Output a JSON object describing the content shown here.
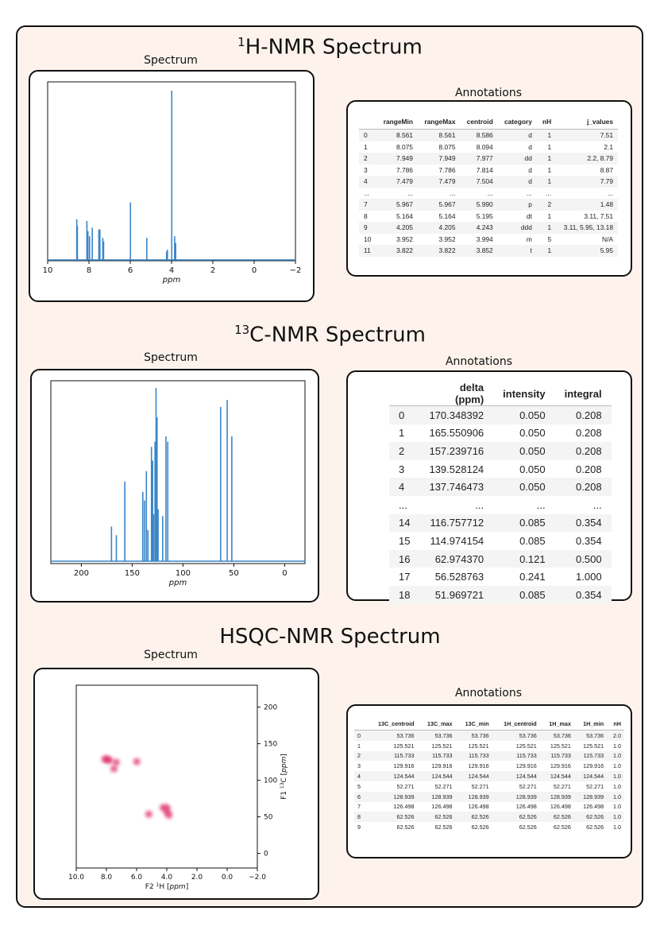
{
  "h1": {
    "title_sup": "1",
    "title_text": "H-NMR Spectrum",
    "spectrum_label": "Spectrum",
    "annotations_label": "Annotations",
    "chart_data": {
      "type": "line",
      "title": "",
      "xlabel": "ppm",
      "ylabel": "",
      "xlim": [
        10,
        -2
      ],
      "ylim": [
        0,
        1.0
      ],
      "x_ticks": [
        10,
        8,
        6,
        4,
        2,
        0,
        -2
      ],
      "x_tick_labels": [
        "10",
        "8",
        "6",
        "4",
        "2",
        "0",
        "−2"
      ],
      "peaks": [
        {
          "x": 8.59,
          "y": 0.24
        },
        {
          "x": 8.56,
          "y": 0.2
        },
        {
          "x": 8.1,
          "y": 0.23
        },
        {
          "x": 8.05,
          "y": 0.17
        },
        {
          "x": 7.97,
          "y": 0.14
        },
        {
          "x": 7.84,
          "y": 0.19
        },
        {
          "x": 7.52,
          "y": 0.18
        },
        {
          "x": 7.47,
          "y": 0.18
        },
        {
          "x": 7.33,
          "y": 0.13
        },
        {
          "x": 7.29,
          "y": 0.11
        },
        {
          "x": 5.99,
          "y": 0.34
        },
        {
          "x": 5.2,
          "y": 0.13
        },
        {
          "x": 4.24,
          "y": 0.05
        },
        {
          "x": 4.2,
          "y": 0.06
        },
        {
          "x": 3.99,
          "y": 1.0
        },
        {
          "x": 3.85,
          "y": 0.14
        },
        {
          "x": 3.8,
          "y": 0.1
        }
      ]
    },
    "table": {
      "columns": [
        "",
        "rangeMin",
        "rangeMax",
        "centroid",
        "category",
        "nH",
        "j_values"
      ],
      "rows": [
        [
          "0",
          "8.561",
          "8.561",
          "8.586",
          "d",
          "1",
          "7.51"
        ],
        [
          "1",
          "8.075",
          "8.075",
          "8.094",
          "d",
          "1",
          "2.1"
        ],
        [
          "2",
          "7.949",
          "7.949",
          "7.977",
          "dd",
          "1",
          "2.2, 8.79"
        ],
        [
          "3",
          "7.786",
          "7.786",
          "7.814",
          "d",
          "1",
          "8.87"
        ],
        [
          "4",
          "7.479",
          "7.479",
          "7.504",
          "d",
          "1",
          "7.79"
        ],
        [
          "...",
          "...",
          "...",
          "...",
          "...",
          "...",
          "..."
        ],
        [
          "7",
          "5.967",
          "5.967",
          "5.990",
          "p",
          "2",
          "1.48"
        ],
        [
          "8",
          "5.164",
          "5.164",
          "5.195",
          "dt",
          "1",
          "3.11, 7.51"
        ],
        [
          "9",
          "4.205",
          "4.205",
          "4.243",
          "ddd",
          "1",
          "3.11, 5.95, 13.18"
        ],
        [
          "10",
          "3.952",
          "3.952",
          "3.994",
          "m",
          "5",
          "N/A"
        ],
        [
          "11",
          "3.822",
          "3.822",
          "3.852",
          "t",
          "1",
          "5.95"
        ]
      ]
    }
  },
  "c13": {
    "title_sup": "13",
    "title_text": "C-NMR Spectrum",
    "spectrum_label": "Spectrum",
    "annotations_label": "Annotations",
    "chart_data": {
      "type": "line",
      "title": "",
      "xlabel": "ppm",
      "ylabel": "",
      "xlim": [
        230,
        -20
      ],
      "ylim": [
        0,
        1.0
      ],
      "x_ticks": [
        200,
        150,
        100,
        50,
        0
      ],
      "x_tick_labels": [
        "200",
        "150",
        "100",
        "50",
        "0"
      ],
      "peaks": [
        {
          "x": 170.35,
          "y": 0.2
        },
        {
          "x": 165.55,
          "y": 0.15
        },
        {
          "x": 157.24,
          "y": 0.46
        },
        {
          "x": 139.53,
          "y": 0.4
        },
        {
          "x": 137.75,
          "y": 0.35
        },
        {
          "x": 136.0,
          "y": 0.52
        },
        {
          "x": 134.5,
          "y": 0.18
        },
        {
          "x": 131.0,
          "y": 0.66
        },
        {
          "x": 129.9,
          "y": 0.58
        },
        {
          "x": 128.9,
          "y": 0.27
        },
        {
          "x": 127.5,
          "y": 0.69
        },
        {
          "x": 126.5,
          "y": 1.0
        },
        {
          "x": 125.5,
          "y": 0.83
        },
        {
          "x": 124.5,
          "y": 0.3
        },
        {
          "x": 120.0,
          "y": 0.26
        },
        {
          "x": 116.76,
          "y": 0.72
        },
        {
          "x": 114.97,
          "y": 0.69
        },
        {
          "x": 62.97,
          "y": 0.89
        },
        {
          "x": 56.53,
          "y": 0.93
        },
        {
          "x": 51.97,
          "y": 0.72
        }
      ]
    },
    "table": {
      "columns": [
        "",
        "delta (ppm)",
        "intensity",
        "integral"
      ],
      "rows": [
        [
          "0",
          "170.348392",
          "0.050",
          "0.208"
        ],
        [
          "1",
          "165.550906",
          "0.050",
          "0.208"
        ],
        [
          "2",
          "157.239716",
          "0.050",
          "0.208"
        ],
        [
          "3",
          "139.528124",
          "0.050",
          "0.208"
        ],
        [
          "4",
          "137.746473",
          "0.050",
          "0.208"
        ],
        [
          "...",
          "...",
          "...",
          "..."
        ],
        [
          "14",
          "116.757712",
          "0.085",
          "0.354"
        ],
        [
          "15",
          "114.974154",
          "0.085",
          "0.354"
        ],
        [
          "16",
          "62.974370",
          "0.121",
          "0.500"
        ],
        [
          "17",
          "56.528763",
          "0.241",
          "1.000"
        ],
        [
          "18",
          "51.969721",
          "0.085",
          "0.354"
        ]
      ]
    }
  },
  "hsqc": {
    "title_text": "HSQC-NMR Spectrum",
    "spectrum_label": "Spectrum",
    "annotations_label": "Annotations",
    "chart_data": {
      "type": "scatter",
      "title": "",
      "xlabel_pre": "F2 ",
      "xlabel_sup": "1",
      "xlabel_mid": "H [",
      "xlabel_unit": "ppm",
      "xlabel_post": "]",
      "ylabel_pre": "F1 ",
      "ylabel_sup": "13",
      "ylabel_mid": "C [",
      "ylabel_unit": "ppm",
      "ylabel_post": "]",
      "xlim": [
        10,
        -2
      ],
      "ylim": [
        -20,
        230
      ],
      "x_ticks": [
        10,
        8,
        6,
        4,
        2,
        0,
        -2
      ],
      "x_tick_labels": [
        "10.0",
        "8.0",
        "6.0",
        "4.0",
        "2.0",
        "0.0",
        "−2.0"
      ],
      "y_ticks": [
        0,
        50,
        100,
        150,
        200
      ],
      "y_tick_labels": [
        "0",
        "50",
        "100",
        "150",
        "200"
      ],
      "points": [
        {
          "x": 8.1,
          "y": 129.0
        },
        {
          "x": 7.95,
          "y": 128.5
        },
        {
          "x": 7.8,
          "y": 127.5
        },
        {
          "x": 7.5,
          "y": 115.7
        },
        {
          "x": 7.35,
          "y": 124.5
        },
        {
          "x": 5.99,
          "y": 125.5
        },
        {
          "x": 5.19,
          "y": 53.7
        },
        {
          "x": 4.24,
          "y": 62.5
        },
        {
          "x": 3.99,
          "y": 62.5
        },
        {
          "x": 3.99,
          "y": 56.5
        },
        {
          "x": 3.85,
          "y": 52.3
        }
      ]
    },
    "table": {
      "columns": [
        "",
        "13C_centroid",
        "13C_max",
        "13C_min",
        "1H_centroid",
        "1H_max",
        "1H_min",
        "nH"
      ],
      "rows": [
        [
          "0",
          "53.736",
          "53.736",
          "53.736",
          "53.736",
          "53.736",
          "53.736",
          "2.0"
        ],
        [
          "1",
          "125.521",
          "125.521",
          "125.521",
          "125.521",
          "125.521",
          "125.521",
          "1.0"
        ],
        [
          "2",
          "115.733",
          "115.733",
          "115.733",
          "115.733",
          "115.733",
          "115.733",
          "1.0"
        ],
        [
          "3",
          "129.916",
          "129.916",
          "129.916",
          "129.916",
          "129.916",
          "129.916",
          "1.0"
        ],
        [
          "4",
          "124.544",
          "124.544",
          "124.544",
          "124.544",
          "124.544",
          "124.544",
          "1.0"
        ],
        [
          "5",
          "52.271",
          "52.271",
          "52.271",
          "52.271",
          "52.271",
          "52.271",
          "1.0"
        ],
        [
          "6",
          "128.939",
          "128.939",
          "128.939",
          "128.939",
          "128.939",
          "128.939",
          "1.0"
        ],
        [
          "7",
          "126.498",
          "126.498",
          "126.498",
          "126.498",
          "126.498",
          "126.498",
          "1.0"
        ],
        [
          "8",
          "62.526",
          "62.526",
          "62.526",
          "62.526",
          "62.526",
          "62.526",
          "1.0"
        ],
        [
          "9",
          "62.526",
          "62.526",
          "62.526",
          "62.526",
          "62.526",
          "62.526",
          "1.0"
        ]
      ]
    }
  }
}
